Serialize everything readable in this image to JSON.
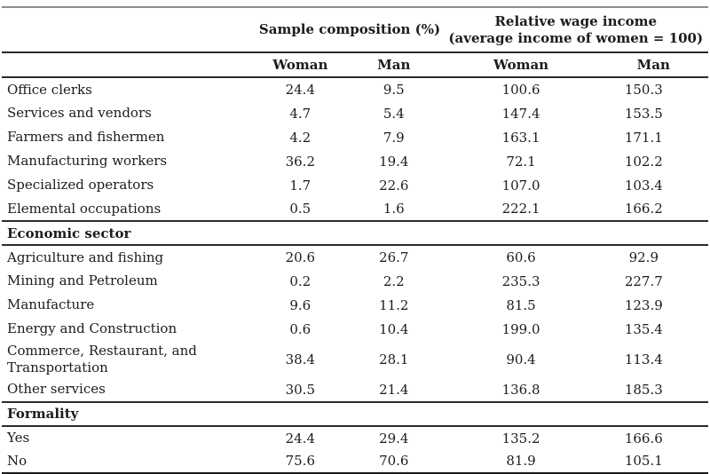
{
  "colors": {
    "text": "#1c1c1c",
    "rule_dark": "#2b2b2b",
    "rule_top": "#8c8c8c",
    "background": "#ffffff"
  },
  "table": {
    "group_headers": [
      {
        "line1": "Sample composition (%)",
        "line2": ""
      },
      {
        "line1": "Relative wage income",
        "line2": "(average income of women = 100)"
      }
    ],
    "column_headers": [
      "Woman",
      "Man",
      "Woman",
      "Man"
    ],
    "sections": [
      {
        "title": "",
        "rows": [
          {
            "label": "Office clerks",
            "values": [
              "24.4",
              "9.5",
              "100.6",
              "150.3"
            ]
          },
          {
            "label": "Services and vendors",
            "values": [
              "4.7",
              "5.4",
              "147.4",
              "153.5"
            ]
          },
          {
            "label": "Farmers and fishermen",
            "values": [
              "4.2",
              "7.9",
              "163.1",
              "171.1"
            ]
          },
          {
            "label": "Manufacturing workers",
            "values": [
              "36.2",
              "19.4",
              "72.1",
              "102.2"
            ]
          },
          {
            "label": "Specialized operators",
            "values": [
              "1.7",
              "22.6",
              "107.0",
              "103.4"
            ]
          },
          {
            "label": "Elemental occupations",
            "values": [
              "0.5",
              "1.6",
              "222.1",
              "166.2"
            ]
          }
        ]
      },
      {
        "title": "Economic sector",
        "rows": [
          {
            "label": "Agriculture and fishing",
            "values": [
              "20.6",
              "26.7",
              "60.6",
              "92.9"
            ]
          },
          {
            "label": "Mining and Petroleum",
            "values": [
              "0.2",
              "2.2",
              "235.3",
              "227.7"
            ]
          },
          {
            "label": "Manufacture",
            "values": [
              "9.6",
              "11.2",
              "81.5",
              "123.9"
            ]
          },
          {
            "label": "Energy and Construction",
            "values": [
              "0.6",
              "10.4",
              "199.0",
              "135.4"
            ]
          },
          {
            "label": "Commerce, Restaurant, and Transportation",
            "values": [
              "38.4",
              "28.1",
              "90.4",
              "113.4"
            ]
          },
          {
            "label": "Other services",
            "values": [
              "30.5",
              "21.4",
              "136.8",
              "185.3"
            ]
          }
        ]
      },
      {
        "title": "Formality",
        "rows": [
          {
            "label": "Yes",
            "values": [
              "24.4",
              "29.4",
              "135.2",
              "166.6"
            ]
          },
          {
            "label": "No",
            "values": [
              "75.6",
              "70.6",
              "81.9",
              "105.1"
            ]
          }
        ]
      }
    ]
  }
}
